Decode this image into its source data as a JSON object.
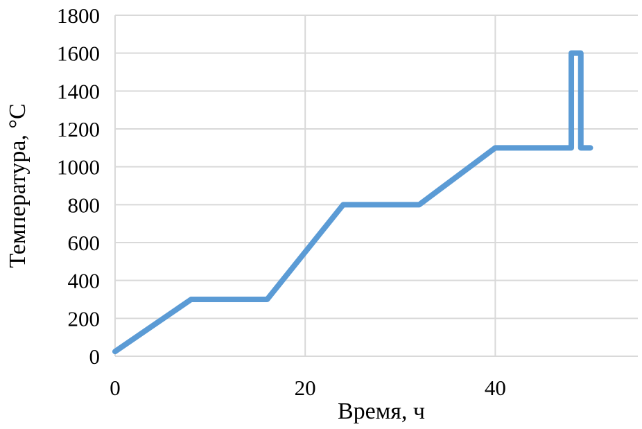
{
  "chart_data": {
    "type": "line",
    "title": "",
    "xlabel": "Время, ч",
    "ylabel": "Температура, °С",
    "xlim": [
      0,
      55
    ],
    "ylim": [
      0,
      1800
    ],
    "xticks": [
      0,
      20,
      40
    ],
    "yticks": [
      0,
      200,
      400,
      600,
      800,
      1000,
      1200,
      1400,
      1600,
      1800
    ],
    "grid": true,
    "legend": "none",
    "series": [
      {
        "color": "#5b9bd5",
        "x": [
          0,
          8,
          16,
          24,
          32,
          40,
          48,
          48,
          49,
          49,
          50
        ],
        "y": [
          25,
          300,
          300,
          800,
          800,
          1100,
          1100,
          1600,
          1600,
          1100,
          1100
        ]
      }
    ]
  }
}
